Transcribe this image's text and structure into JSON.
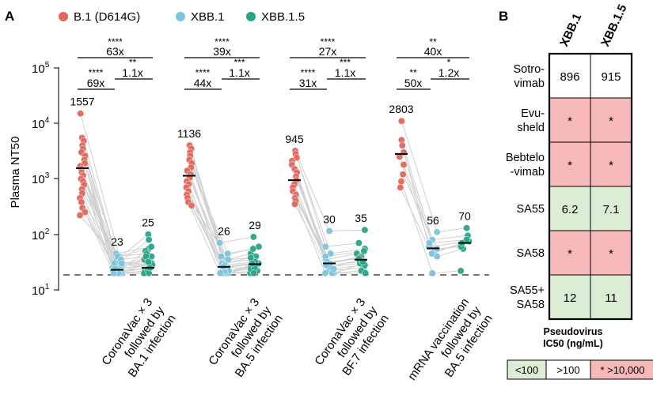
{
  "panel_a": {
    "label": "A",
    "legend": [
      {
        "name": "B.1 (D614G)",
        "color": "#e0675c"
      },
      {
        "name": "XBB.1",
        "color": "#7ec3d9"
      },
      {
        "name": "XBB.1.5",
        "color": "#2aa387"
      }
    ],
    "ylabel": "Plasma NT50",
    "yticks": [
      {
        "base": "10",
        "exp": "1"
      },
      {
        "base": "10",
        "exp": "2"
      },
      {
        "base": "10",
        "exp": "3"
      },
      {
        "base": "10",
        "exp": "4"
      },
      {
        "base": "10",
        "exp": "5"
      }
    ]
  },
  "chart_data": {
    "type": "scatter",
    "yscale": "log",
    "ylim": [
      10,
      100000
    ],
    "ylabel": "Plasma NT50",
    "detection_limit": 20,
    "series_names": [
      "B.1 (D614G)",
      "XBB.1",
      "XBB.1.5"
    ],
    "groups": [
      {
        "label_lines": [
          "CoronaVac × 3",
          "followed by",
          "BA.1 infection"
        ],
        "gmt_labels": [
          "1557",
          "23",
          "25"
        ],
        "geomeans": [
          1557,
          23,
          25
        ],
        "brackets": [
          {
            "stars": "****",
            "fold": "63x",
            "span": "B.1-XBB.1.5"
          },
          {
            "stars": "****",
            "fold": "69x",
            "span": "B.1-XBB.1"
          },
          {
            "stars": "**",
            "fold": "1.1x",
            "span": "XBB.1-XBB.1.5"
          }
        ],
        "points": [
          [
            15000,
            40,
            55
          ],
          [
            5500,
            20,
            30
          ],
          [
            4800,
            35,
            100
          ],
          [
            4000,
            25,
            80
          ],
          [
            3500,
            45,
            60
          ],
          [
            3000,
            20,
            50
          ],
          [
            2600,
            28,
            40
          ],
          [
            2200,
            22,
            30
          ],
          [
            1900,
            30,
            25
          ],
          [
            1700,
            20,
            22
          ],
          [
            1500,
            40,
            45
          ],
          [
            1300,
            25,
            35
          ],
          [
            1150,
            20,
            20
          ],
          [
            1000,
            32,
            28
          ],
          [
            900,
            22,
            24
          ],
          [
            780,
            20,
            20
          ],
          [
            650,
            28,
            30
          ],
          [
            550,
            20,
            22
          ],
          [
            450,
            35,
            40
          ],
          [
            380,
            20,
            20
          ],
          [
            300,
            24,
            28
          ],
          [
            250,
            20,
            25
          ],
          [
            220,
            30,
            32
          ]
        ]
      },
      {
        "label_lines": [
          "CoronaVac × 3",
          "followed by",
          "BA.5 infection"
        ],
        "gmt_labels": [
          "1136",
          "26",
          "29"
        ],
        "geomeans": [
          1136,
          26,
          29
        ],
        "brackets": [
          {
            "stars": "****",
            "fold": "39x",
            "span": "B.1-XBB.1.5"
          },
          {
            "stars": "****",
            "fold": "44x",
            "span": "B.1-XBB.1"
          },
          {
            "stars": "***",
            "fold": "1.1x",
            "span": "XBB.1-XBB.1.5"
          }
        ],
        "points": [
          [
            4000,
            70,
            90
          ],
          [
            3500,
            40,
            60
          ],
          [
            3000,
            35,
            45
          ],
          [
            2600,
            20,
            30
          ],
          [
            2200,
            30,
            40
          ],
          [
            1900,
            25,
            25
          ],
          [
            1600,
            45,
            55
          ],
          [
            1400,
            22,
            28
          ],
          [
            1200,
            20,
            22
          ],
          [
            1050,
            30,
            35
          ],
          [
            900,
            25,
            30
          ],
          [
            800,
            20,
            20
          ],
          [
            700,
            28,
            32
          ],
          [
            600,
            20,
            24
          ],
          [
            520,
            35,
            38
          ],
          [
            450,
            22,
            25
          ],
          [
            380,
            20,
            20
          ],
          [
            330,
            26,
            30
          ]
        ]
      },
      {
        "label_lines": [
          "CoronaVac × 3",
          "followed by",
          "BF.7 infection"
        ],
        "gmt_labels": [
          "945",
          "30",
          "35"
        ],
        "geomeans": [
          945,
          30,
          35
        ],
        "brackets": [
          {
            "stars": "****",
            "fold": "27x",
            "span": "B.1-XBB.1.5"
          },
          {
            "stars": "****",
            "fold": "31x",
            "span": "B.1-XBB.1"
          },
          {
            "stars": "***",
            "fold": "1.1x",
            "span": "XBB.1-XBB.1.5"
          }
        ],
        "points": [
          [
            3200,
            115,
            120
          ],
          [
            2800,
            60,
            70
          ],
          [
            2400,
            45,
            55
          ],
          [
            2100,
            35,
            45
          ],
          [
            1800,
            30,
            40
          ],
          [
            1500,
            25,
            35
          ],
          [
            1300,
            40,
            50
          ],
          [
            1100,
            20,
            30
          ],
          [
            950,
            30,
            38
          ],
          [
            800,
            22,
            25
          ],
          [
            700,
            26,
            30
          ],
          [
            600,
            20,
            22
          ],
          [
            520,
            32,
            36
          ],
          [
            450,
            24,
            28
          ],
          [
            400,
            20,
            20
          ],
          [
            350,
            28,
            32
          ]
        ]
      },
      {
        "label_lines": [
          "mRNA vaccination",
          "followed by",
          "BA.5 infection"
        ],
        "gmt_labels": [
          "2803",
          "56",
          "70"
        ],
        "geomeans": [
          2803,
          56,
          70
        ],
        "brackets": [
          {
            "stars": "**",
            "fold": "40x",
            "span": "B.1-XBB.1.5"
          },
          {
            "stars": "**",
            "fold": "50x",
            "span": "B.1-XBB.1"
          },
          {
            "stars": "*",
            "fold": "1.2x",
            "span": "XBB.1-XBB.1.5"
          }
        ],
        "points": [
          [
            11000,
            110,
            130
          ],
          [
            5000,
            80,
            95
          ],
          [
            4000,
            60,
            75
          ],
          [
            3000,
            50,
            65
          ],
          [
            2500,
            70,
            80
          ],
          [
            1800,
            40,
            55
          ],
          [
            1200,
            55,
            60
          ],
          [
            900,
            20,
            22
          ],
          [
            700,
            45,
            70
          ]
        ]
      }
    ]
  },
  "panel_b": {
    "label": "B",
    "columns": [
      "XBB.1",
      "XBB.1.5"
    ],
    "rows": [
      {
        "name_lines": [
          "Sotro-",
          "vimab"
        ],
        "values": [
          "896",
          "915"
        ],
        "classes": [
          "mid",
          "mid"
        ]
      },
      {
        "name_lines": [
          "Evu-",
          "sheld"
        ],
        "values": [
          "*",
          "*"
        ],
        "classes": [
          "high",
          "high"
        ]
      },
      {
        "name_lines": [
          "Bebtelo",
          "-vimab"
        ],
        "values": [
          "*",
          "*"
        ],
        "classes": [
          "high",
          "high"
        ]
      },
      {
        "name_lines": [
          "SA55"
        ],
        "values": [
          "6.2",
          "7.1"
        ],
        "classes": [
          "low",
          "low"
        ]
      },
      {
        "name_lines": [
          "SA58"
        ],
        "values": [
          "*",
          "*"
        ],
        "classes": [
          "high",
          "high"
        ]
      },
      {
        "name_lines": [
          "SA55+",
          "SA58"
        ],
        "values": [
          "12",
          "11"
        ],
        "classes": [
          "low",
          "low"
        ]
      }
    ],
    "colors": {
      "low": "#dcedd5",
      "mid": "#ffffff",
      "high": "#f6b8b8"
    },
    "legend_title_lines": [
      "Pseudovirus",
      "IC50 (ng/mL)"
    ],
    "legend_items": [
      {
        "label": "<100",
        "class": "low"
      },
      {
        "label": ">100",
        "class": "mid"
      },
      {
        "label": "* >10,000",
        "class": "high"
      }
    ]
  }
}
